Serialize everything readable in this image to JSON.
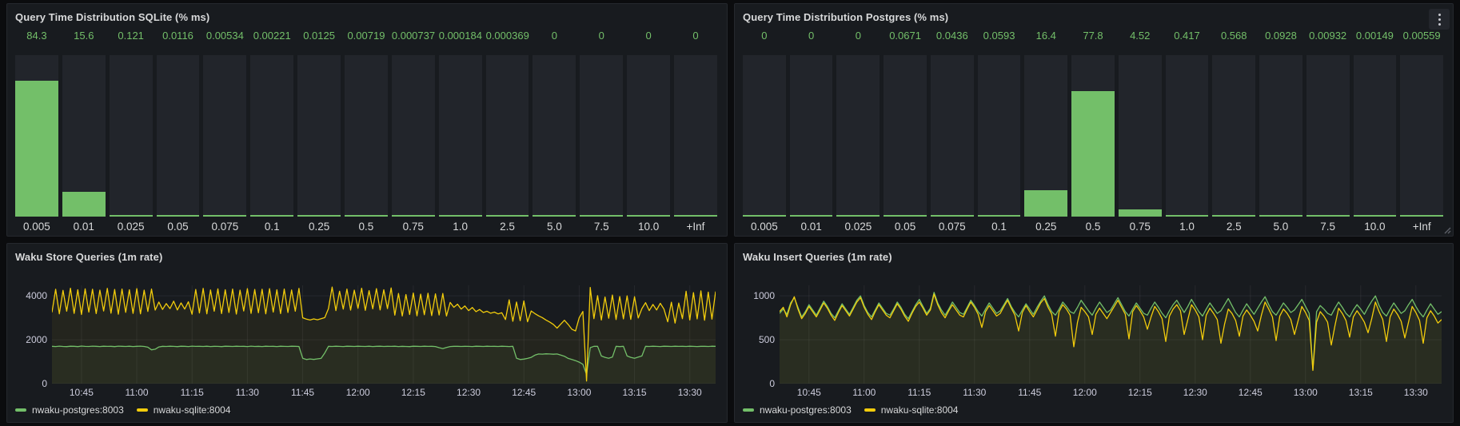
{
  "colors": {
    "green": "#73bf69",
    "yellow": "#f2cc0c",
    "panel_bg": "#181b1f",
    "bar_track_bg": "#22252b",
    "title_text": "#d8d9da",
    "axis_text": "#ccccdc",
    "grid": "rgba(204,204,220,0.08)"
  },
  "chart_data": [
    {
      "panel": "query-time-distribution-sqlite",
      "type": "bar",
      "title": "Query Time Distribution SQLite (% ms)",
      "categories": [
        "0.005",
        "0.01",
        "0.025",
        "0.05",
        "0.075",
        "0.1",
        "0.25",
        "0.5",
        "0.75",
        "1.0",
        "2.5",
        "5.0",
        "7.5",
        "10.0",
        "+Inf"
      ],
      "values": [
        84.3,
        15.6,
        0.121,
        0.0116,
        0.00534,
        0.00221,
        0.0125,
        0.00719,
        0.000737,
        0.000184,
        0.000369,
        0,
        0,
        0,
        0
      ],
      "value_labels": [
        "84.3",
        "15.6",
        "0.121",
        "0.0116",
        "0.00534",
        "0.00221",
        "0.0125",
        "0.00719",
        "0.000737",
        "0.000184",
        "0.000369",
        "0",
        "0",
        "0",
        "0"
      ],
      "ylim": [
        0,
        100
      ],
      "bar_color": "#73bf69"
    },
    {
      "panel": "query-time-distribution-postgres",
      "type": "bar",
      "title": "Query Time Distribution Postgres (% ms)",
      "categories": [
        "0.005",
        "0.01",
        "0.025",
        "0.05",
        "0.075",
        "0.1",
        "0.25",
        "0.5",
        "0.75",
        "1.0",
        "2.5",
        "5.0",
        "7.5",
        "10.0",
        "+Inf"
      ],
      "values": [
        0,
        0,
        0,
        0.0671,
        0.0436,
        0.0593,
        16.4,
        77.8,
        4.52,
        0.417,
        0.568,
        0.0928,
        0.00932,
        0.00149,
        0.00559
      ],
      "value_labels": [
        "0",
        "0",
        "0",
        "0.0671",
        "0.0436",
        "0.0593",
        "16.4",
        "77.8",
        "4.52",
        "0.417",
        "0.568",
        "0.0928",
        "0.00932",
        "0.00149",
        "0.00559"
      ],
      "ylim": [
        0,
        100
      ],
      "bar_color": "#73bf69"
    },
    {
      "panel": "waku-store-queries",
      "type": "line",
      "title": "Waku Store Queries (1m rate)",
      "x_window": {
        "start": "10:37",
        "end": "13:37",
        "minutes": 180
      },
      "x_tick_minutes": [
        8,
        23,
        38,
        53,
        68,
        83,
        98,
        113,
        128,
        143,
        158,
        173
      ],
      "x_tick_labels": [
        "10:45",
        "11:00",
        "11:15",
        "11:30",
        "11:45",
        "12:00",
        "12:15",
        "12:30",
        "12:45",
        "13:00",
        "13:15",
        "13:30"
      ],
      "yticks": [
        0,
        2000,
        4000
      ],
      "ylim": [
        0,
        4480
      ],
      "series": [
        {
          "name": "nwaku-postgres:8003",
          "color": "#73bf69",
          "values": [
            1700,
            1690,
            1710,
            1695,
            1685,
            1705,
            1700,
            1688,
            1712,
            1698,
            1692,
            1708,
            1700,
            1690,
            1706,
            1696,
            1702,
            1688,
            1710,
            1700,
            1695,
            1705,
            1690,
            1700,
            1708,
            1694,
            1660,
            1540,
            1570,
            1670,
            1700,
            1692,
            1706,
            1698,
            1688,
            1704,
            1700,
            1690,
            1708,
            1696,
            1700,
            1694,
            1706,
            1690,
            1702,
            1698,
            1688,
            1705,
            1700,
            1692,
            1704,
            1696,
            1700,
            1690,
            1707,
            1695,
            1700,
            1689,
            1703,
            1697,
            1700,
            1691,
            1705,
            1698,
            1692,
            1704,
            1700,
            1695,
            1160,
            1100,
            1125,
            1105,
            1130,
            1150,
            1400,
            1700,
            1693,
            1705,
            1697,
            1690,
            1703,
            1700,
            1692,
            1706,
            1698,
            1695,
            1704,
            1690,
            1700,
            1706,
            1693,
            1700,
            1696,
            1704,
            1690,
            1700,
            1695,
            1688,
            1703,
            1700,
            1692,
            1705,
            1696,
            1700,
            1690,
            1640,
            1600,
            1650,
            1690,
            1700,
            1700,
            1694,
            1702,
            1696,
            1690,
            1704,
            1700,
            1693,
            1705,
            1698,
            1700,
            1692,
            1704,
            1697,
            1690,
            1700,
            1160,
            1100,
            1120,
            1150,
            1200,
            1300,
            1350,
            1345,
            1360,
            1350,
            1340,
            1352,
            1300,
            1250,
            1150,
            1100,
            1050,
            980,
            880,
            420,
            1640,
            1700,
            1700,
            1260,
            1200,
            1160,
            1210,
            1700,
            1685,
            1700,
            1260,
            1200,
            1160,
            1210,
            1260,
            1700,
            1692,
            1705,
            1697,
            1690,
            1703,
            1700,
            1694,
            1706,
            1698,
            1700,
            1693,
            1704,
            1696,
            1690,
            1702,
            1700,
            1695,
            1705,
            1700
          ]
        },
        {
          "name": "nwaku-sqlite:8004",
          "color": "#f2cc0c",
          "values": [
            3250,
            4300,
            3180,
            4250,
            3300,
            4350,
            3200,
            4280,
            3150,
            4320,
            3260,
            4300,
            3190,
            4260,
            3310,
            4340,
            3210,
            4290,
            3160,
            4310,
            3250,
            4280,
            3200,
            4330,
            3180,
            4260,
            3290,
            4310,
            3350,
            3720,
            3380,
            3650,
            3420,
            3760,
            3360,
            3680,
            3400,
            3730,
            3160,
            4290,
            3220,
            4340,
            3180,
            4270,
            3300,
            4320,
            3190,
            4280,
            3240,
            4310,
            3170,
            4260,
            3310,
            4330,
            3200,
            4290,
            3230,
            4300,
            3180,
            4330,
            3260,
            4280,
            3190,
            4310,
            3240,
            4270,
            3300,
            4340,
            3000,
            2940,
            2900,
            2950,
            2910,
            2960,
            3010,
            3420,
            4400,
            3330,
            4210,
            3400,
            4310,
            3350,
            4260,
            3430,
            4350,
            3340,
            4240,
            3410,
            4330,
            3360,
            4280,
            3420,
            4360,
            3120,
            4110,
            3080,
            4060,
            3150,
            4130,
            3090,
            4080,
            3140,
            4120,
            3100,
            4090,
            3130,
            4110,
            3080,
            3700,
            3480,
            3620,
            3400,
            3540,
            3330,
            3470,
            3280,
            3380,
            3240,
            3300,
            3210,
            3260,
            3180,
            3230,
            2920,
            3820,
            2840,
            3720,
            2870,
            3770,
            2820,
            3310,
            3190,
            3090,
            3010,
            2900,
            2810,
            2700,
            2530,
            2710,
            2890,
            2700,
            2480,
            2400,
            3000,
            3290,
            120,
            4380,
            2960,
            4010,
            2900,
            3950,
            2980,
            4040,
            2920,
            3970,
            2950,
            4000,
            2930,
            3960,
            2990,
            3420,
            3690,
            3330,
            3610,
            3360,
            3660,
            3400,
            2820,
            3710,
            2760,
            3670,
            2960,
            4210,
            2900,
            4150,
            2950,
            4230,
            2890,
            4170,
            2940,
            4200
          ]
        }
      ]
    },
    {
      "panel": "waku-insert-queries",
      "type": "line",
      "title": "Waku Insert Queries (1m rate)",
      "x_window": {
        "start": "10:37",
        "end": "13:37",
        "minutes": 180
      },
      "x_tick_minutes": [
        8,
        23,
        38,
        53,
        68,
        83,
        98,
        113,
        128,
        143,
        158,
        173
      ],
      "x_tick_labels": [
        "10:45",
        "11:00",
        "11:15",
        "11:30",
        "11:45",
        "12:00",
        "12:15",
        "12:30",
        "12:45",
        "13:00",
        "13:15",
        "13:30"
      ],
      "yticks": [
        0,
        500,
        1000
      ],
      "ylim": [
        0,
        1120
      ],
      "series": [
        {
          "name": "nwaku-postgres:8003",
          "color": "#73bf69",
          "values": [
            800,
            850,
            790,
            920,
            980,
            870,
            760,
            820,
            900,
            840,
            780,
            860,
            940,
            880,
            800,
            750,
            830,
            910,
            850,
            790,
            870,
            950,
            1000,
            890,
            810,
            760,
            840,
            920,
            860,
            800,
            780,
            850,
            930,
            870,
            790,
            740,
            820,
            900,
            960,
            880,
            800,
            860,
            1040,
            920,
            840,
            780,
            850,
            930,
            870,
            810,
            790,
            870,
            950,
            890,
            820,
            770,
            850,
            920,
            860,
            800,
            830,
            900,
            970,
            880,
            810,
            760,
            840,
            910,
            850,
            790,
            870,
            940,
            1000,
            900,
            820,
            780,
            850,
            930,
            880,
            820,
            800,
            870,
            950,
            890,
            830,
            780,
            860,
            930,
            870,
            810,
            840,
            910,
            980,
            900,
            820,
            770,
            850,
            920,
            860,
            800,
            780,
            860,
            930,
            870,
            800,
            750,
            830,
            900,
            950,
            880,
            810,
            880,
            960,
            890,
            820,
            770,
            850,
            920,
            860,
            800,
            830,
            900,
            970,
            890,
            810,
            760,
            840,
            910,
            850,
            790,
            860,
            930,
            990,
            900,
            820,
            780,
            850,
            920,
            870,
            810,
            840,
            900,
            960,
            880,
            800,
            160,
            820,
            890,
            850,
            800,
            780,
            860,
            930,
            870,
            800,
            760,
            840,
            900,
            850,
            790,
            870,
            940,
            1000,
            890,
            810,
            770,
            850,
            920,
            860,
            800,
            830,
            900,
            960,
            880,
            810,
            760,
            840,
            910,
            850,
            790,
            820
          ]
        },
        {
          "name": "nwaku-sqlite:8004",
          "color": "#f2cc0c",
          "values": [
            820,
            870,
            760,
            900,
            990,
            850,
            740,
            800,
            880,
            820,
            760,
            840,
            920,
            860,
            780,
            720,
            810,
            890,
            830,
            770,
            850,
            930,
            980,
            870,
            790,
            730,
            820,
            900,
            840,
            780,
            750,
            830,
            910,
            850,
            770,
            710,
            800,
            880,
            930,
            860,
            780,
            840,
            1020,
            900,
            810,
            750,
            830,
            900,
            840,
            780,
            760,
            850,
            930,
            870,
            790,
            640,
            820,
            890,
            830,
            770,
            800,
            880,
            950,
            860,
            780,
            600,
            810,
            890,
            820,
            760,
            840,
            920,
            970,
            870,
            790,
            540,
            820,
            900,
            850,
            780,
            420,
            700,
            870,
            820,
            760,
            560,
            790,
            860,
            800,
            740,
            810,
            880,
            950,
            870,
            790,
            510,
            820,
            890,
            830,
            760,
            620,
            760,
            880,
            820,
            740,
            480,
            770,
            850,
            900,
            830,
            560,
            730,
            900,
            840,
            760,
            500,
            780,
            860,
            800,
            730,
            460,
            680,
            850,
            800,
            720,
            540,
            770,
            840,
            780,
            710,
            600,
            780,
            930,
            850,
            760,
            490,
            770,
            850,
            800,
            730,
            560,
            720,
            880,
            810,
            720,
            150,
            700,
            820,
            770,
            700,
            440,
            660,
            860,
            800,
            720,
            530,
            760,
            830,
            770,
            700,
            580,
            740,
            930,
            820,
            730,
            480,
            760,
            850,
            790,
            710,
            520,
            700,
            880,
            810,
            720,
            460,
            750,
            830,
            770,
            690,
            730
          ]
        }
      ]
    }
  ],
  "panel_menu": {
    "icon": "kebab-menu"
  }
}
